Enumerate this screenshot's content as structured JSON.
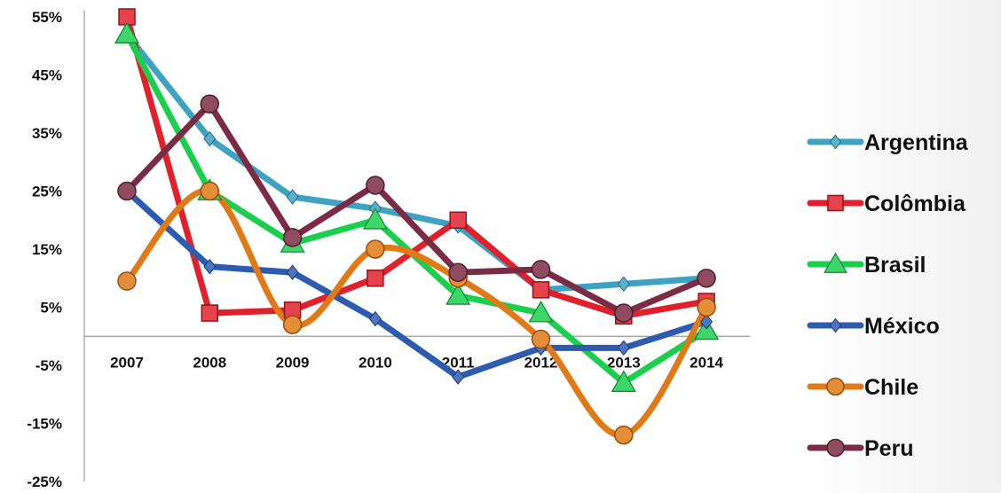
{
  "chart_data": {
    "type": "line",
    "categories": [
      "2007",
      "2008",
      "2009",
      "2010",
      "2011",
      "2012",
      "2013",
      "2014"
    ],
    "ylim": [
      -25,
      55
    ],
    "yticks": [
      55,
      45,
      35,
      25,
      15,
      5,
      -5,
      -15,
      -25
    ],
    "ytick_labels": [
      "55%",
      "45%",
      "35%",
      "25%",
      "15%",
      "5%",
      "-5%",
      "-15%",
      "-25%"
    ],
    "grid": false,
    "legend_position": "right",
    "series": [
      {
        "name": "Argentina",
        "color": "#3ea2c2",
        "marker": "diamond",
        "smooth": false,
        "values": [
          52,
          34,
          24,
          22,
          19,
          8,
          9,
          10
        ]
      },
      {
        "name": "Colômbia",
        "color": "#e0212b",
        "marker": "square",
        "smooth": false,
        "values": [
          55,
          4,
          4.5,
          10,
          20,
          8,
          3.5,
          6
        ]
      },
      {
        "name": "Brasil",
        "color": "#1bcf4e",
        "marker": "triangle",
        "smooth": false,
        "values": [
          52,
          25,
          16,
          20,
          7,
          4,
          -8,
          1
        ]
      },
      {
        "name": "México",
        "color": "#2d5bb0",
        "marker": "diamond",
        "smooth": false,
        "values": [
          25,
          12,
          11,
          3,
          -7,
          -2,
          -2,
          2.5
        ]
      },
      {
        "name": "Chile",
        "color": "#e07a16",
        "marker": "circle",
        "smooth": true,
        "values": [
          9.5,
          25,
          2,
          15,
          10,
          -0.5,
          -17,
          5
        ]
      },
      {
        "name": "Peru",
        "color": "#7b2c44",
        "marker": "circle",
        "smooth": false,
        "values": [
          25,
          40,
          17,
          26,
          11,
          11.5,
          4,
          10
        ]
      }
    ]
  }
}
